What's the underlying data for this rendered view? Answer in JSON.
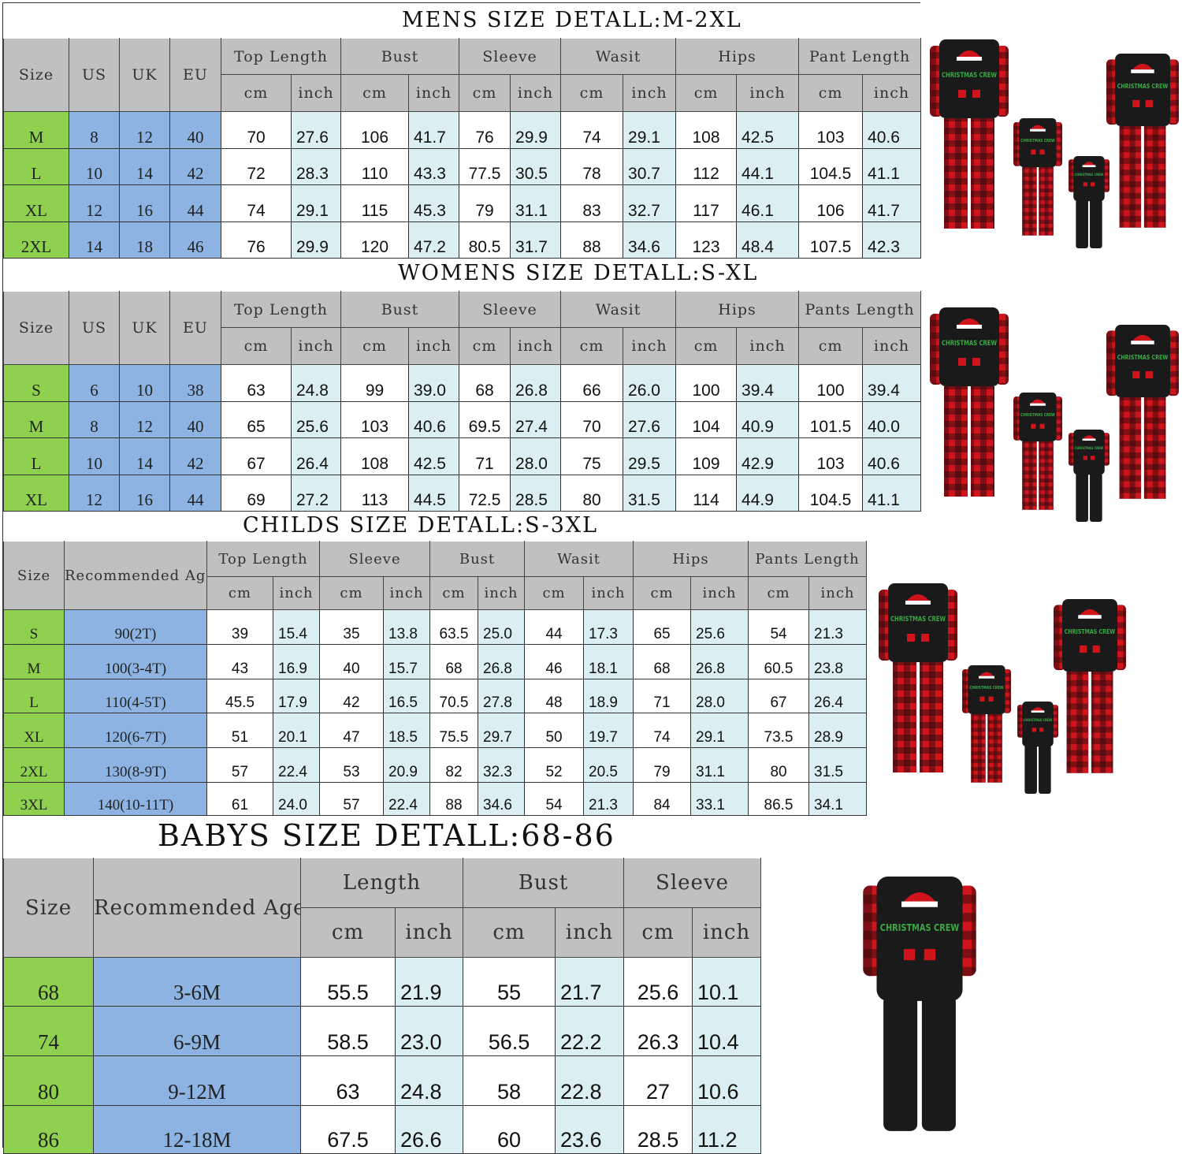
{
  "colors": {
    "header_gray": "#c0c0c0",
    "size_green": "#8fd14f",
    "size_blue": "#8db3e2",
    "inch_lightblue": "#dbeef3",
    "cm_white": "#ffffff",
    "plaid_red": "#d0141c",
    "top_black": "#1a1a1a"
  },
  "images": {
    "product": "christmas-crew-family-pajamas",
    "print_text": "CHRISTMAS CREW"
  },
  "tables": [
    {
      "id": "mens",
      "title": "MENS SIZE DETALL:M-2XL",
      "fixed_headers": [
        "Size",
        "US",
        "UK",
        "EU"
      ],
      "groups": [
        "Top Length",
        "Bust",
        "Sleeve",
        "Wasit",
        "Hips",
        "Pant Length"
      ],
      "units": [
        "cm",
        "inch"
      ],
      "rows": [
        [
          "M",
          "8",
          "12",
          "40",
          "70",
          "27.6",
          "106",
          "41.7",
          "76",
          "29.9",
          "74",
          "29.1",
          "108",
          "42.5",
          "103",
          "40.6"
        ],
        [
          "L",
          "10",
          "14",
          "42",
          "72",
          "28.3",
          "110",
          "43.3",
          "77.5",
          "30.5",
          "78",
          "30.7",
          "112",
          "44.1",
          "104.5",
          "41.1"
        ],
        [
          "XL",
          "12",
          "16",
          "44",
          "74",
          "29.1",
          "115",
          "45.3",
          "79",
          "31.1",
          "83",
          "32.7",
          "117",
          "46.1",
          "106",
          "41.7"
        ],
        [
          "2XL",
          "14",
          "18",
          "46",
          "76",
          "29.9",
          "120",
          "47.2",
          "80.5",
          "31.7",
          "88",
          "34.6",
          "123",
          "48.4",
          "107.5",
          "42.3"
        ]
      ]
    },
    {
      "id": "womens",
      "title": "WOMENS SIZE DETALL:S-XL",
      "fixed_headers": [
        "Size",
        "US",
        "UK",
        "EU"
      ],
      "groups": [
        "Top Length",
        "Bust",
        "Sleeve",
        "Wasit",
        "Hips",
        "Pants Length"
      ],
      "units": [
        "cm",
        "inch"
      ],
      "rows": [
        [
          "S",
          "6",
          "10",
          "38",
          "63",
          "24.8",
          "99",
          "39.0",
          "68",
          "26.8",
          "66",
          "26.0",
          "100",
          "39.4",
          "100",
          "39.4"
        ],
        [
          "M",
          "8",
          "12",
          "40",
          "65",
          "25.6",
          "103",
          "40.6",
          "69.5",
          "27.4",
          "70",
          "27.6",
          "104",
          "40.9",
          "101.5",
          "40.0"
        ],
        [
          "L",
          "10",
          "14",
          "42",
          "67",
          "26.4",
          "108",
          "42.5",
          "71",
          "28.0",
          "75",
          "29.5",
          "109",
          "42.9",
          "103",
          "40.6"
        ],
        [
          "XL",
          "12",
          "16",
          "44",
          "69",
          "27.2",
          "113",
          "44.5",
          "72.5",
          "28.5",
          "80",
          "31.5",
          "114",
          "44.9",
          "104.5",
          "41.1"
        ]
      ]
    },
    {
      "id": "childs",
      "title": "CHILDS SIZE DETALL:S-3XL",
      "fixed_headers": [
        "Size",
        "Recommended Age"
      ],
      "groups": [
        "Top Length",
        "Sleeve",
        "Bust",
        "Wasit",
        "Hips",
        "Pants Length"
      ],
      "units": [
        "cm",
        "inch"
      ],
      "rows": [
        [
          "S",
          "90(2T)",
          "39",
          "15.4",
          "35",
          "13.8",
          "63.5",
          "25.0",
          "44",
          "17.3",
          "65",
          "25.6",
          "54",
          "21.3"
        ],
        [
          "M",
          "100(3-4T)",
          "43",
          "16.9",
          "40",
          "15.7",
          "68",
          "26.8",
          "46",
          "18.1",
          "68",
          "26.8",
          "60.5",
          "23.8"
        ],
        [
          "L",
          "110(4-5T)",
          "45.5",
          "17.9",
          "42",
          "16.5",
          "70.5",
          "27.8",
          "48",
          "18.9",
          "71",
          "28.0",
          "67",
          "26.4"
        ],
        [
          "XL",
          "120(6-7T)",
          "51",
          "20.1",
          "47",
          "18.5",
          "75.5",
          "29.7",
          "50",
          "19.7",
          "74",
          "29.1",
          "73.5",
          "28.9"
        ],
        [
          "2XL",
          "130(8-9T)",
          "57",
          "22.4",
          "53",
          "20.9",
          "82",
          "32.3",
          "52",
          "20.5",
          "79",
          "31.1",
          "80",
          "31.5"
        ],
        [
          "3XL",
          "140(10-11T)",
          "61",
          "24.0",
          "57",
          "22.4",
          "88",
          "34.6",
          "54",
          "21.3",
          "84",
          "33.1",
          "86.5",
          "34.1"
        ]
      ]
    },
    {
      "id": "babys",
      "title": "BABYS SIZE DETALL:68-86",
      "fixed_headers": [
        "Size",
        "Recommended Age"
      ],
      "groups": [
        "Length",
        "Bust",
        "Sleeve"
      ],
      "units": [
        "cm",
        "inch"
      ],
      "rows": [
        [
          "68",
          "3-6M",
          "55.5",
          "21.9",
          "55",
          "21.7",
          "25.6",
          "10.1"
        ],
        [
          "74",
          "6-9M",
          "58.5",
          "23.0",
          "56.5",
          "22.2",
          "26.3",
          "10.4"
        ],
        [
          "80",
          "9-12M",
          "63",
          "24.8",
          "58",
          "22.8",
          "27",
          "10.6"
        ],
        [
          "86",
          "12-18M",
          "67.5",
          "26.6",
          "60",
          "23.6",
          "28.5",
          "11.2"
        ]
      ]
    }
  ]
}
